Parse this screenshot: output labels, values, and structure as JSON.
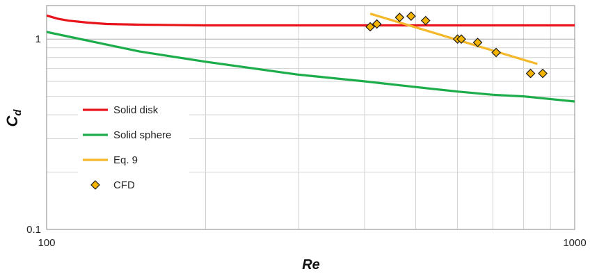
{
  "chart_data": {
    "type": "line",
    "title": "",
    "xlabel": "Re",
    "ylabel": "C",
    "ylabel_subscript": "d",
    "xscale": "log",
    "yscale": "log",
    "xlim": [
      100,
      1000
    ],
    "ylim": [
      0.1,
      1.5
    ],
    "x_tick_labels": [
      "100",
      "1000"
    ],
    "y_tick_labels": [
      "0.1",
      "1"
    ],
    "grid": true,
    "legend_position": "center-left",
    "series": [
      {
        "name": "Solid disk",
        "kind": "line",
        "color": "#e8141b",
        "x": [
          100,
          105,
          110,
          120,
          130,
          150,
          200,
          300,
          500,
          700,
          1000
        ],
        "y": [
          1.33,
          1.28,
          1.25,
          1.22,
          1.2,
          1.19,
          1.18,
          1.18,
          1.18,
          1.18,
          1.18
        ]
      },
      {
        "name": "Solid sphere",
        "kind": "line",
        "color": "#1cad4a",
        "x": [
          100,
          150,
          200,
          300,
          400,
          500,
          600,
          700,
          800,
          1000
        ],
        "y": [
          1.09,
          0.86,
          0.76,
          0.65,
          0.6,
          0.56,
          0.53,
          0.51,
          0.5,
          0.47
        ]
      },
      {
        "name": "Eq. 9",
        "kind": "line",
        "color": "#f4b82a",
        "x": [
          410,
          850
        ],
        "y": [
          1.36,
          0.74
        ]
      },
      {
        "name": "CFD",
        "kind": "scatter",
        "color": "#f5b400",
        "marker": "diamond",
        "x": [
          410,
          422,
          466,
          490,
          522,
          600,
          610,
          655,
          710,
          825,
          870
        ],
        "y": [
          1.16,
          1.2,
          1.3,
          1.32,
          1.25,
          1.0,
          1.0,
          0.96,
          0.85,
          0.66,
          0.66
        ]
      }
    ]
  }
}
